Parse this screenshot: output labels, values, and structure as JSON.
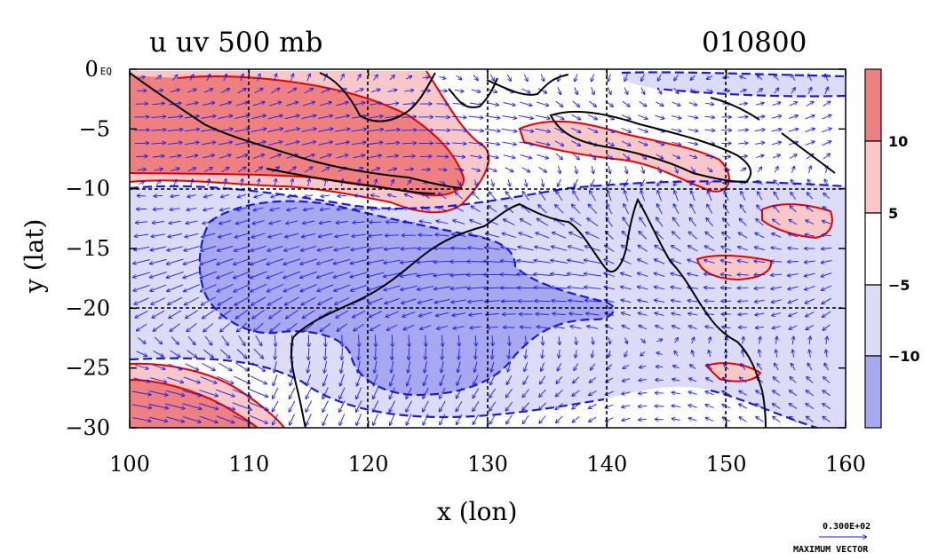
{
  "header": {
    "title": "u uv 500 mb",
    "date": "010800"
  },
  "colors": {
    "pos_strong": "#ef8080",
    "pos_weak": "#f8c8c8",
    "neg_weak": "#dcdcf8",
    "neg_strong": "#a8a8f0",
    "pos_contour": "#e00000",
    "neg_contour": "#1a1ad8",
    "vector": "#1a1af0",
    "coast": "#000000"
  },
  "chart_data": {
    "type": "heatmap",
    "title": "u uv 500 mb",
    "subtitle": "010800",
    "xlabel": "x (lon)",
    "ylabel": "y (lat)",
    "xlim": [
      100,
      160
    ],
    "ylim": [
      -30,
      0
    ],
    "x_ticks": [
      "100",
      "110",
      "120",
      "130",
      "140",
      "150",
      "160"
    ],
    "y_ticks": [
      "0 EQ",
      "−5",
      "−10",
      "−15",
      "−20",
      "−25",
      "−30"
    ],
    "grid": true,
    "colorbar": {
      "levels": [
        "10",
        "5",
        "−5",
        "−10"
      ],
      "bins": [
        ">10",
        "5 to 10",
        "−5 to 5",
        "−10 to −5",
        "<−10"
      ]
    },
    "vector_reference": {
      "magnitude": "0.300E+02",
      "label": "MAXIMUM VECTOR"
    }
  }
}
